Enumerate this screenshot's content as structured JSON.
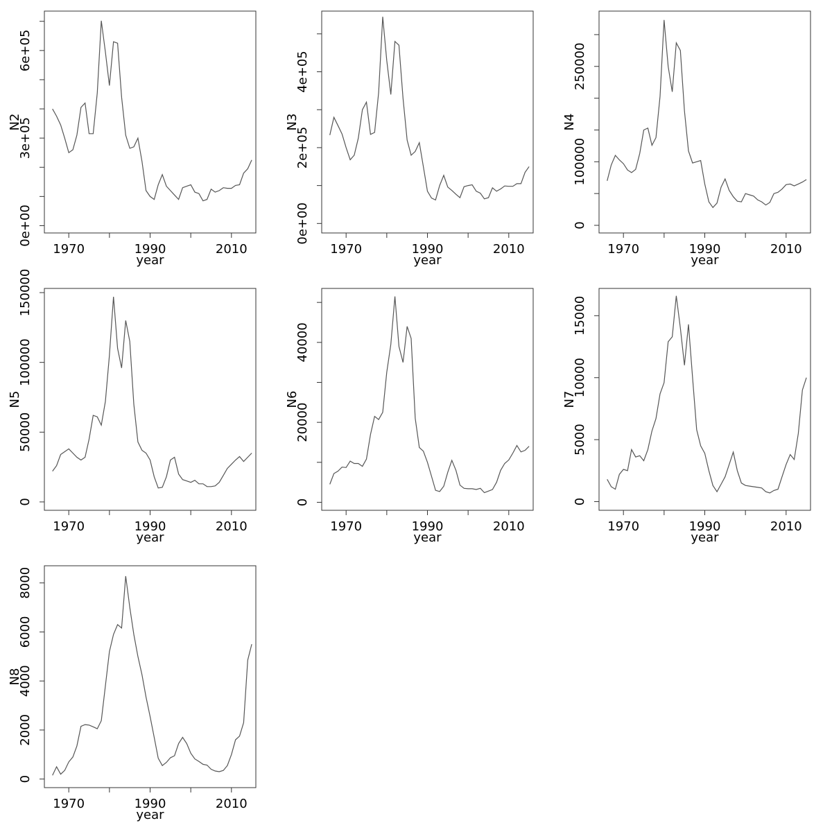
{
  "chart_data": [
    {
      "type": "line",
      "title": "",
      "xlabel": "year",
      "ylabel": "N2",
      "xticks": [
        1970,
        1990,
        2010
      ],
      "xtick_labels": [
        "1970",
        "1990",
        "2010"
      ],
      "xlim": [
        1964,
        2016
      ],
      "ylim": [
        -25000,
        735000
      ],
      "yticks": [
        0,
        300000,
        600000
      ],
      "ytick_labels": [
        "0e+00",
        "3e+05",
        "6e+05"
      ],
      "minor_yticks": [
        0,
        100000,
        200000,
        300000,
        400000,
        500000,
        600000,
        700000
      ],
      "x": [
        1966,
        1967,
        1968,
        1969,
        1970,
        1971,
        1972,
        1973,
        1974,
        1975,
        1976,
        1977,
        1978,
        1979,
        1980,
        1981,
        1982,
        1983,
        1984,
        1985,
        1986,
        1987,
        1988,
        1989,
        1990,
        1991,
        1992,
        1993,
        1994,
        1995,
        1996,
        1997,
        1998,
        1999,
        2000,
        2001,
        2002,
        2003,
        2004,
        2005,
        2006,
        2007,
        2008,
        2009,
        2010,
        2011,
        2012,
        2013,
        2014,
        2015
      ],
      "series": [
        {
          "values": [
            400000,
            375000,
            345000,
            300000,
            250000,
            260000,
            310000,
            405000,
            420000,
            315000,
            315000,
            455000,
            702000,
            595000,
            480000,
            630000,
            625000,
            440000,
            310000,
            265000,
            270000,
            300000,
            220000,
            120000,
            100000,
            90000,
            140000,
            175000,
            135000,
            120000,
            105000,
            90000,
            130000,
            135000,
            140000,
            115000,
            110000,
            85000,
            90000,
            125000,
            115000,
            120000,
            130000,
            128000,
            128000,
            138000,
            140000,
            180000,
            195000,
            225000
          ]
        }
      ]
    },
    {
      "type": "line",
      "title": "",
      "xlabel": "year",
      "ylabel": "N3",
      "xticks": [
        1970,
        1990,
        2010
      ],
      "xtick_labels": [
        "1970",
        "1990",
        "2010"
      ],
      "xlim": [
        1964,
        2016
      ],
      "ylim": [
        -25000,
        560000
      ],
      "yticks": [
        0,
        200000,
        400000
      ],
      "ytick_labels": [
        "0e+00",
        "2e+05",
        "4e+05"
      ],
      "minor_yticks": [
        0,
        100000,
        200000,
        300000,
        400000,
        500000
      ],
      "x": [
        1966,
        1967,
        1968,
        1969,
        1970,
        1971,
        1972,
        1973,
        1974,
        1975,
        1976,
        1977,
        1978,
        1979,
        1980,
        1981,
        1982,
        1983,
        1984,
        1985,
        1986,
        1987,
        1988,
        1989,
        1990,
        1991,
        1992,
        1993,
        1994,
        1995,
        1996,
        1997,
        1998,
        1999,
        2000,
        2001,
        2002,
        2003,
        2004,
        2005,
        2006,
        2007,
        2008,
        2009,
        2010,
        2011,
        2012,
        2013,
        2014,
        2015
      ],
      "series": [
        {
          "values": [
            233000,
            280000,
            258000,
            236000,
            200000,
            168000,
            180000,
            225000,
            300000,
            320000,
            235000,
            240000,
            345000,
            545000,
            430000,
            340000,
            480000,
            470000,
            330000,
            220000,
            180000,
            190000,
            213000,
            150000,
            85000,
            67000,
            62000,
            100000,
            127000,
            96000,
            87000,
            77000,
            68000,
            97000,
            100000,
            102000,
            85000,
            80000,
            65000,
            68000,
            94000,
            85000,
            91000,
            99000,
            98000,
            98000,
            105000,
            105000,
            135000,
            150000
          ]
        }
      ]
    },
    {
      "type": "line",
      "title": "",
      "xlabel": "year",
      "ylabel": "N4",
      "xticks": [
        1970,
        1990,
        2010
      ],
      "xtick_labels": [
        "1970",
        "1990",
        "2010"
      ],
      "xlim": [
        1964,
        2016
      ],
      "ylim": [
        -12000,
        337000
      ],
      "yticks": [
        0,
        100000,
        250000
      ],
      "ytick_labels": [
        "0",
        "100000",
        "250000"
      ],
      "minor_yticks": [
        0,
        50000,
        100000,
        150000,
        200000,
        250000,
        300000
      ],
      "x": [
        1966,
        1967,
        1968,
        1969,
        1970,
        1971,
        1972,
        1973,
        1974,
        1975,
        1976,
        1977,
        1978,
        1979,
        1980,
        1981,
        1982,
        1983,
        1984,
        1985,
        1986,
        1987,
        1988,
        1989,
        1990,
        1991,
        1992,
        1993,
        1994,
        1995,
        1996,
        1997,
        1998,
        1999,
        2000,
        2001,
        2002,
        2003,
        2004,
        2005,
        2006,
        2007,
        2008,
        2009,
        2010,
        2011,
        2012,
        2013,
        2014,
        2015
      ],
      "series": [
        {
          "values": [
            70000,
            95000,
            110000,
            103000,
            97000,
            87000,
            83000,
            88000,
            113000,
            150000,
            153000,
            126000,
            138000,
            203000,
            323000,
            250000,
            210000,
            287000,
            275000,
            180000,
            117000,
            98000,
            100000,
            102000,
            65000,
            37000,
            28000,
            35000,
            60000,
            73000,
            55000,
            45000,
            38000,
            37000,
            50000,
            48000,
            46000,
            40000,
            37000,
            32000,
            36000,
            50000,
            52000,
            57000,
            64000,
            65000,
            62000,
            65000,
            68000,
            72000
          ]
        }
      ]
    },
    {
      "type": "line",
      "title": "",
      "xlabel": "year",
      "ylabel": "N5",
      "xticks": [
        1970,
        1990,
        2010
      ],
      "xtick_labels": [
        "1970",
        "1990",
        "2010"
      ],
      "xlim": [
        1964,
        2016
      ],
      "ylim": [
        -6000,
        153000
      ],
      "yticks": [
        0,
        50000,
        100000,
        150000
      ],
      "ytick_labels": [
        "0",
        "50000",
        "100000",
        "150000"
      ],
      "minor_yticks": [
        0,
        50000,
        100000,
        150000
      ],
      "x": [
        1966,
        1967,
        1968,
        1969,
        1970,
        1971,
        1972,
        1973,
        1974,
        1975,
        1976,
        1977,
        1978,
        1979,
        1980,
        1981,
        1982,
        1983,
        1984,
        1985,
        1986,
        1987,
        1988,
        1989,
        1990,
        1991,
        1992,
        1993,
        1994,
        1995,
        1996,
        1997,
        1998,
        1999,
        2000,
        2001,
        2002,
        2003,
        2004,
        2005,
        2006,
        2007,
        2008,
        2009,
        2010,
        2011,
        2012,
        2013,
        2014,
        2015
      ],
      "series": [
        {
          "values": [
            22000,
            26000,
            34000,
            36000,
            38000,
            35000,
            32000,
            30000,
            32000,
            45000,
            62000,
            61000,
            55000,
            72000,
            105000,
            147000,
            110000,
            96000,
            130000,
            115000,
            70000,
            43000,
            37000,
            35000,
            30000,
            18000,
            10000,
            10500,
            18000,
            30000,
            32000,
            20000,
            16000,
            15000,
            14000,
            15500,
            13000,
            13000,
            11000,
            11000,
            11500,
            14000,
            19000,
            24000,
            27000,
            30000,
            32500,
            29000,
            32000,
            35000
          ]
        }
      ]
    },
    {
      "type": "line",
      "title": "",
      "xlabel": "year",
      "ylabel": "N6",
      "xticks": [
        1970,
        1990,
        2010
      ],
      "xtick_labels": [
        "1970",
        "1990",
        "2010"
      ],
      "xlim": [
        1964,
        2016
      ],
      "ylim": [
        -2000,
        53500
      ],
      "yticks": [
        0,
        20000,
        40000
      ],
      "ytick_labels": [
        "0",
        "20000",
        "40000"
      ],
      "minor_yticks": [
        0,
        10000,
        20000,
        30000,
        40000,
        50000
      ],
      "x": [
        1966,
        1967,
        1968,
        1969,
        1970,
        1971,
        1972,
        1973,
        1974,
        1975,
        1976,
        1977,
        1978,
        1979,
        1980,
        1981,
        1982,
        1983,
        1984,
        1985,
        1986,
        1987,
        1988,
        1989,
        1990,
        1991,
        1992,
        1993,
        1994,
        1995,
        1996,
        1997,
        1998,
        1999,
        2000,
        2001,
        2002,
        2003,
        2004,
        2005,
        2006,
        2007,
        2008,
        2009,
        2010,
        2011,
        2012,
        2013,
        2014,
        2015
      ],
      "series": [
        {
          "values": [
            4500,
            7200,
            7800,
            8800,
            8700,
            10300,
            9700,
            9700,
            9000,
            10800,
            17000,
            21500,
            20700,
            22500,
            32500,
            39500,
            51500,
            39000,
            35000,
            44000,
            41000,
            21000,
            13700,
            12800,
            10000,
            6500,
            3000,
            2700,
            4000,
            7500,
            10500,
            8000,
            4300,
            3500,
            3400,
            3400,
            3200,
            3500,
            2400,
            2800,
            3200,
            5000,
            8000,
            9700,
            10600,
            12300,
            14200,
            12600,
            13000,
            14000
          ]
        }
      ]
    },
    {
      "type": "line",
      "title": "",
      "xlabel": "year",
      "ylabel": "N7",
      "xticks": [
        1970,
        1990,
        2010
      ],
      "xtick_labels": [
        "1970",
        "1990",
        "2010"
      ],
      "xlim": [
        1964,
        2016
      ],
      "ylim": [
        -700,
        17200
      ],
      "yticks": [
        0,
        5000,
        10000,
        15000
      ],
      "ytick_labels": [
        "0",
        "5000",
        "10000",
        "15000"
      ],
      "minor_yticks": [
        0,
        5000,
        10000,
        15000
      ],
      "x": [
        1966,
        1967,
        1968,
        1969,
        1970,
        1971,
        1972,
        1973,
        1974,
        1975,
        1976,
        1977,
        1978,
        1979,
        1980,
        1981,
        1982,
        1983,
        1984,
        1985,
        1986,
        1987,
        1988,
        1989,
        1990,
        1991,
        1992,
        1993,
        1994,
        1995,
        1996,
        1997,
        1998,
        1999,
        2000,
        2001,
        2002,
        2003,
        2004,
        2005,
        2006,
        2007,
        2008,
        2009,
        2010,
        2011,
        2012,
        2013,
        2014,
        2015
      ],
      "series": [
        {
          "values": [
            1800,
            1200,
            1000,
            2200,
            2600,
            2500,
            4200,
            3600,
            3700,
            3300,
            4200,
            5700,
            6700,
            8700,
            9600,
            12900,
            13300,
            16600,
            14000,
            11000,
            14300,
            10000,
            5800,
            4500,
            3900,
            2500,
            1300,
            800,
            1400,
            2000,
            3000,
            4000,
            2500,
            1500,
            1300,
            1250,
            1200,
            1150,
            1100,
            800,
            700,
            900,
            1000,
            2000,
            3000,
            3800,
            3400,
            5500,
            9000,
            10000
          ]
        }
      ]
    },
    {
      "type": "line",
      "title": "",
      "xlabel": "year",
      "ylabel": "N8",
      "xticks": [
        1970,
        1990,
        2010
      ],
      "xtick_labels": [
        "1970",
        "1990",
        "2010"
      ],
      "xlim": [
        1964,
        2016
      ],
      "ylim": [
        -350,
        8700
      ],
      "yticks": [
        0,
        2000,
        4000,
        6000,
        8000
      ],
      "ytick_labels": [
        "0",
        "2000",
        "4000",
        "6000",
        "8000"
      ],
      "minor_yticks": [
        0,
        2000,
        4000,
        6000,
        8000
      ],
      "x": [
        1966,
        1967,
        1968,
        1969,
        1970,
        1971,
        1972,
        1973,
        1974,
        1975,
        1976,
        1977,
        1978,
        1979,
        1980,
        1981,
        1982,
        1983,
        1984,
        1985,
        1986,
        1987,
        1988,
        1989,
        1990,
        1991,
        1992,
        1993,
        1994,
        1995,
        1996,
        1997,
        1998,
        1999,
        2000,
        2001,
        2002,
        2003,
        2004,
        2005,
        2006,
        2007,
        2008,
        2009,
        2010,
        2011,
        2012,
        2013,
        2014,
        2015
      ],
      "series": [
        {
          "values": [
            150,
            500,
            200,
            350,
            700,
            900,
            1350,
            2150,
            2220,
            2200,
            2130,
            2050,
            2380,
            3800,
            5200,
            5900,
            6300,
            6160,
            8280,
            7000,
            5900,
            5000,
            4250,
            3350,
            2550,
            1700,
            850,
            550,
            680,
            870,
            950,
            1450,
            1700,
            1450,
            1050,
            820,
            720,
            600,
            570,
            400,
            330,
            300,
            350,
            550,
            1000,
            1600,
            1750,
            2300,
            4850,
            5500
          ]
        }
      ]
    }
  ]
}
